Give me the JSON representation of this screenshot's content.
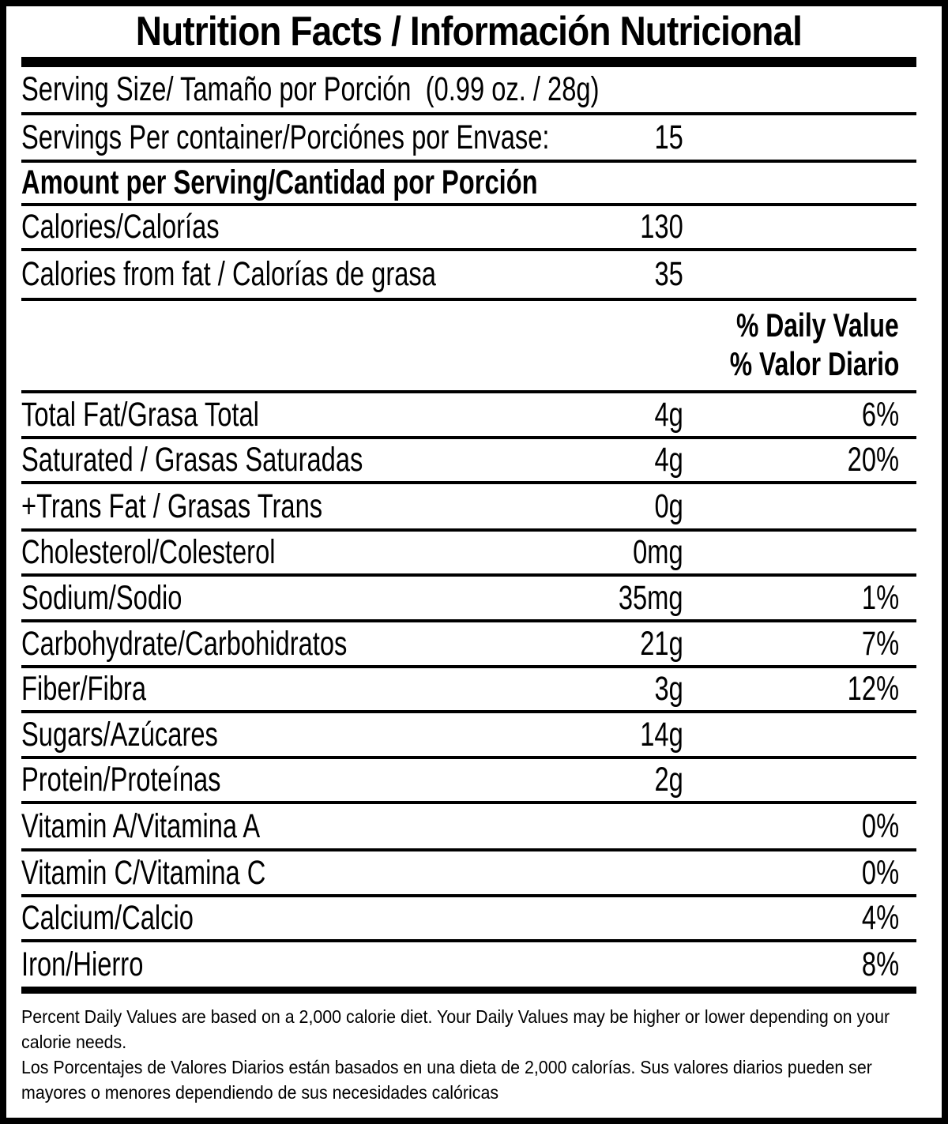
{
  "label": {
    "title": "Nutrition Facts / Información Nutricional",
    "serving_size": "Serving Size/ Tamaño por Porción  (0.99 oz. / 28g)",
    "servings_per_container": {
      "label": "Servings Per container/Porciónes por Envase:",
      "value": "15"
    },
    "amount_per_serving": "Amount per Serving/Cantidad por Porción",
    "calories": {
      "label": "Calories/Calorías",
      "value": "130"
    },
    "calories_from_fat": {
      "label": "Calories from fat / Calorías de grasa",
      "value": "35"
    },
    "daily_value_header": {
      "en": "% Daily Value",
      "es": "% Valor Diario"
    },
    "nutrients": [
      {
        "label": "Total Fat/Grasa Total",
        "amount": "4g",
        "dv": "6%"
      },
      {
        "label": "Saturated / Grasas Saturadas",
        "amount": "4g",
        "dv": "20%"
      },
      {
        "label": "+Trans Fat / Grasas Trans",
        "amount": "0g",
        "dv": ""
      },
      {
        "label": "Cholesterol/Colesterol",
        "amount": "0mg",
        "dv": ""
      },
      {
        "label": "Sodium/Sodio",
        "amount": "35mg",
        "dv": "1%"
      },
      {
        "label": "Carbohydrate/Carbohidratos",
        "amount": "21g",
        "dv": "7%"
      },
      {
        "label": "Fiber/Fibra",
        "amount": "3g",
        "dv": "12%"
      },
      {
        "label": "Sugars/Azúcares",
        "amount": "14g",
        "dv": ""
      },
      {
        "label": "Protein/Proteínas",
        "amount": "2g",
        "dv": ""
      },
      {
        "label": "Vitamin A/Vitamina A",
        "amount": "",
        "dv": "0%"
      },
      {
        "label": "Vitamin C/Vitamina C",
        "amount": "",
        "dv": "0%"
      },
      {
        "label": "Calcium/Calcio",
        "amount": "",
        "dv": "4%"
      },
      {
        "label": "Iron/Hierro",
        "amount": "",
        "dv": "8%"
      }
    ],
    "footnote_lines": [
      "Percent Daily Values are based on a 2,000 calorie diet. Your Daily Values may be higher or lower depending on your",
      "calorie needs.",
      "Los Porcentajes de Valores Diarios están basados en una dieta de 2,000 calorías. Sus valores diarios pueden ser",
      "mayores o menores dependiendo de sus necesidades calóricas"
    ]
  }
}
